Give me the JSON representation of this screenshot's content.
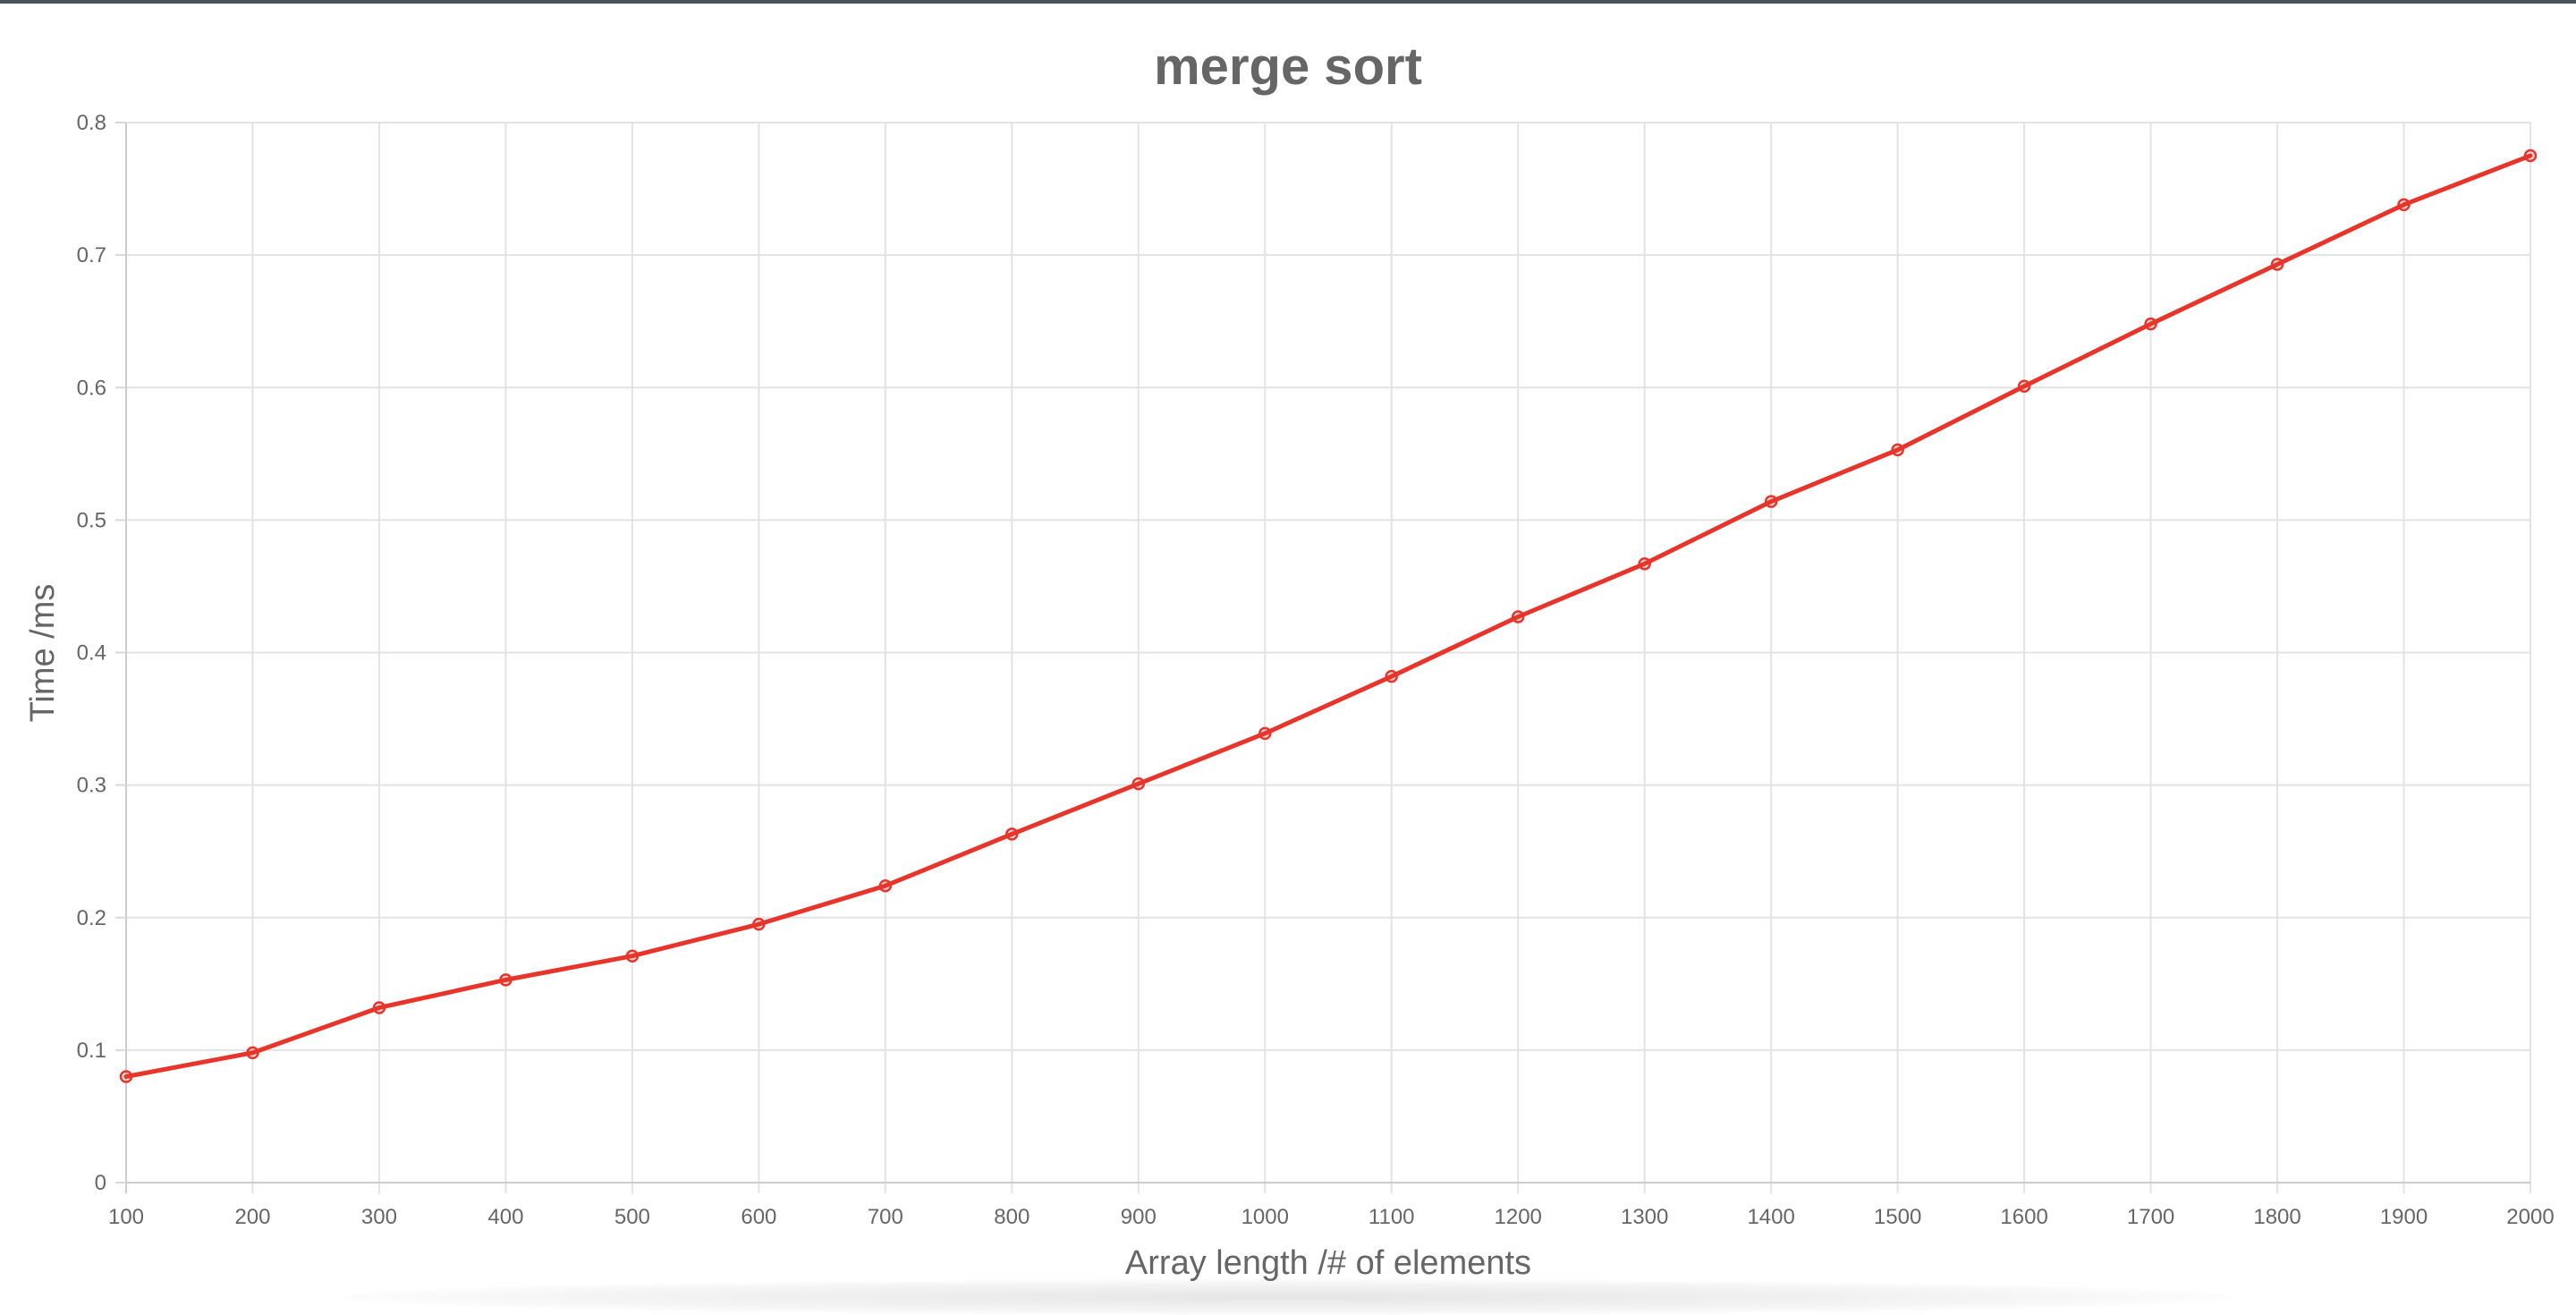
{
  "chart_data": {
    "type": "line",
    "title": "merge sort",
    "xlabel": "Array length /# of elements",
    "ylabel": "Time /ms",
    "x": [
      100,
      200,
      300,
      400,
      500,
      600,
      700,
      800,
      900,
      1000,
      1100,
      1200,
      1300,
      1400,
      1500,
      1600,
      1700,
      1800,
      1900,
      2000
    ],
    "series": [
      {
        "values": [
          0.08,
          0.098,
          0.132,
          0.153,
          0.171,
          0.195,
          0.224,
          0.263,
          0.301,
          0.339,
          0.382,
          0.427,
          0.467,
          0.514,
          0.553,
          0.601,
          0.648,
          0.693,
          0.738,
          0.775
        ],
        "color": "#e8352b"
      }
    ],
    "xticks": [
      "100",
      "200",
      "300",
      "400",
      "500",
      "600",
      "700",
      "800",
      "900",
      "1000",
      "1100",
      "1200",
      "1300",
      "1400",
      "1500",
      "1600",
      "1700",
      "1800",
      "1900",
      "2000"
    ],
    "yticks": [
      "0",
      "0.1",
      "0.2",
      "0.3",
      "0.4",
      "0.5",
      "0.6",
      "0.7",
      "0.8"
    ],
    "ylim": [
      0,
      0.8
    ],
    "grid": true,
    "legend": "none"
  }
}
